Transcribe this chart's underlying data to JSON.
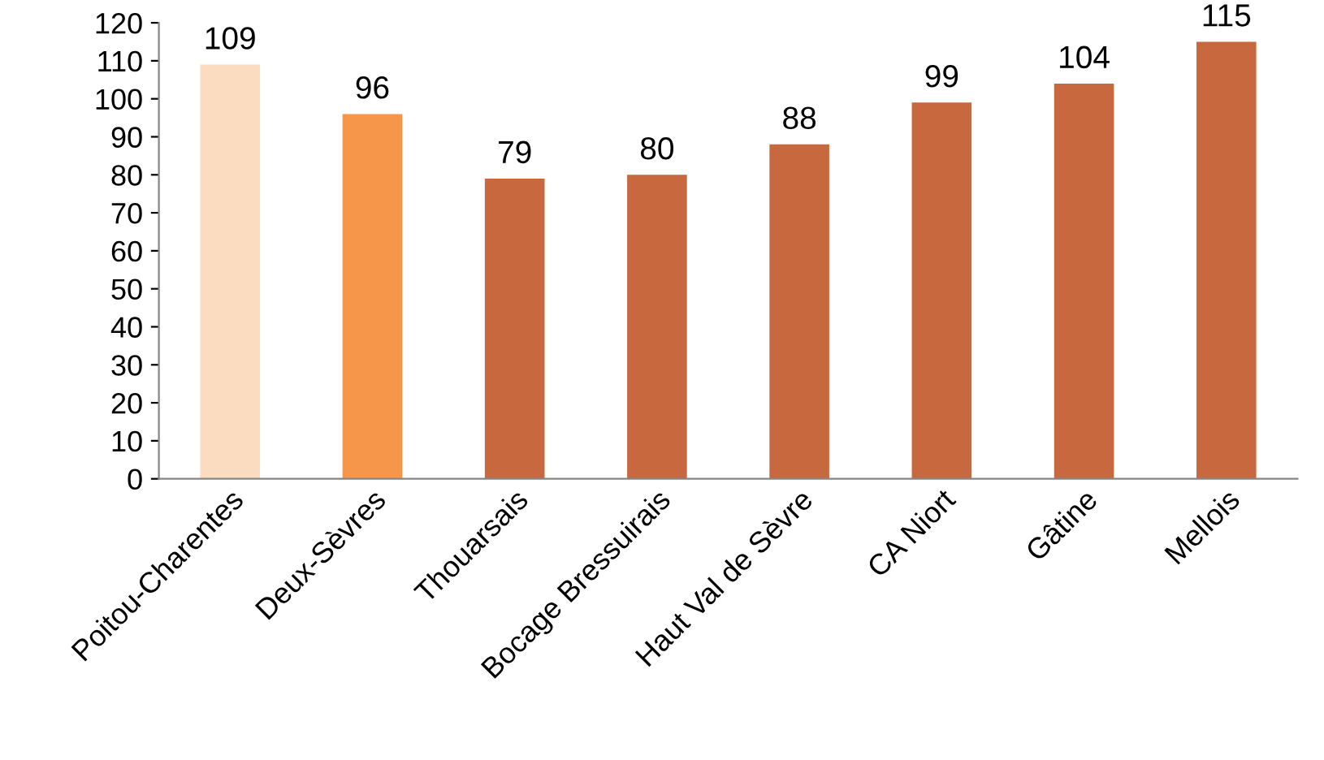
{
  "chart_data": {
    "type": "bar",
    "categories": [
      "Poitou-Charentes",
      "Deux-Sèvres",
      "Thouarsais",
      "Bocage Bressuirais",
      "Haut Val de Sèvre",
      "CA Niort",
      "Gâtine",
      "Mellois"
    ],
    "values": [
      109,
      96,
      79,
      80,
      88,
      99,
      104,
      115
    ],
    "colors": [
      "#fcdcc0",
      "#f5964a",
      "#c8683e",
      "#c8683e",
      "#c8683e",
      "#c8683e",
      "#c8683e",
      "#c8683e"
    ],
    "ylim": [
      0,
      120
    ],
    "yticks": [
      0,
      10,
      20,
      30,
      40,
      50,
      60,
      70,
      80,
      90,
      100,
      110,
      120
    ],
    "data_labels": true,
    "grid": false,
    "legend": false
  }
}
